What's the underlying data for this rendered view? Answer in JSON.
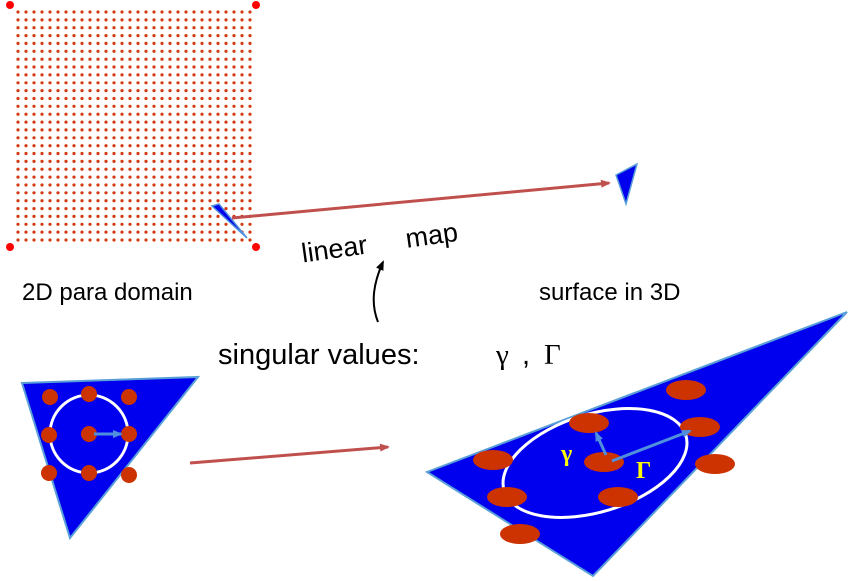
{
  "labels": {
    "param_domain": "2D para domain",
    "surface": "surface in 3D",
    "linear_map_word1": "linear",
    "linear_map_word2": "map",
    "singular_values_prefix": "singular values:",
    "gamma_small": "γ",
    "separator": ",",
    "gamma_large": "Γ",
    "gamma_small_vec": "γ",
    "gamma_large_vec": "Γ"
  },
  "colors": {
    "grid_dot": "#d23a12",
    "corner_dot": "#ff0000",
    "triangle_fill": "#0000ee",
    "triangle_stroke": "#5aa0d8",
    "sample_dot": "#cc3300",
    "ellipse": "#ffffff",
    "vector": "#4f8fdc",
    "map_arrow": "#c0504d",
    "greek_label": "#ffff00"
  },
  "grid": {
    "rows": 30,
    "cols": 30
  },
  "icons": [
    "arrow-right-icon",
    "arrow-up-icon"
  ]
}
